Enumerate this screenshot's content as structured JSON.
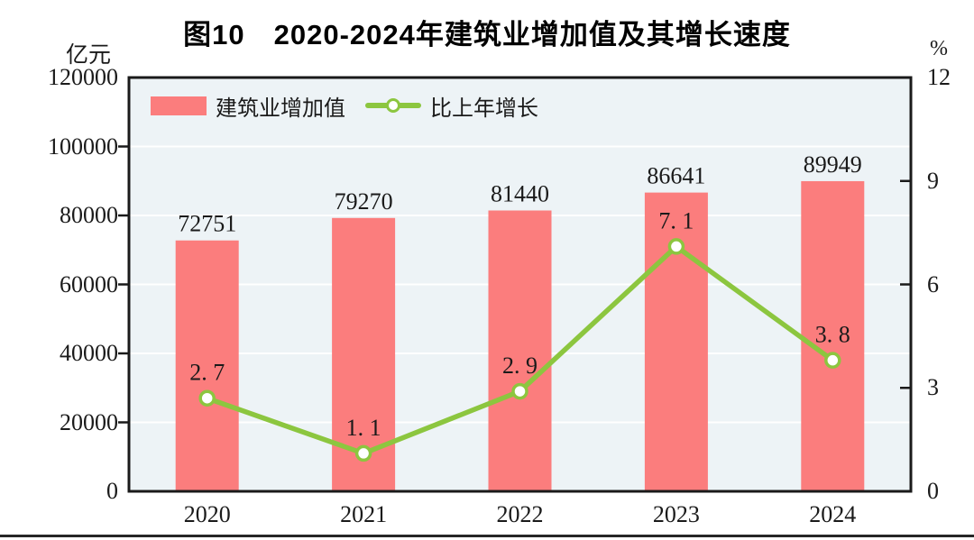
{
  "chart_data": {
    "type": "bar+line",
    "title": "图10　2020-2024年建筑业增加值及其增长速度",
    "categories": [
      "2020",
      "2021",
      "2022",
      "2023",
      "2024"
    ],
    "series": [
      {
        "name": "建筑业增加值",
        "type": "bar",
        "axis": "left",
        "color": "#FB7D7D",
        "values": [
          72751,
          79270,
          81440,
          86641,
          89949
        ],
        "labels": [
          "72751",
          "79270",
          "81440",
          "86641",
          "89949"
        ]
      },
      {
        "name": "比上年增长",
        "type": "line",
        "axis": "right",
        "color": "#8CC63F",
        "marker": "circle-white-fill",
        "values": [
          2.7,
          1.1,
          2.9,
          7.1,
          3.8
        ],
        "labels": [
          "2. 7",
          "1. 1",
          "2. 9",
          "7. 1",
          "3. 8"
        ]
      }
    ],
    "left_axis": {
      "unit": "亿元",
      "min": 0,
      "max": 120000,
      "step": 20000,
      "tick_labels": [
        "0",
        "20000",
        "40000",
        "60000",
        "80000",
        "100000",
        "120000"
      ]
    },
    "right_axis": {
      "unit": "%",
      "min": 0,
      "max": 12,
      "step": 3,
      "tick_labels": [
        "0",
        "3",
        "6",
        "9",
        "12"
      ]
    },
    "legend_position": "top-left-inside",
    "grid": "horizontal-white-lines",
    "style": {
      "plot_bg": "#EDF3F6",
      "grid_color": "#FFFFFF",
      "axis_color": "#1A1A1A",
      "text_color": "#1A1A1A"
    }
  }
}
